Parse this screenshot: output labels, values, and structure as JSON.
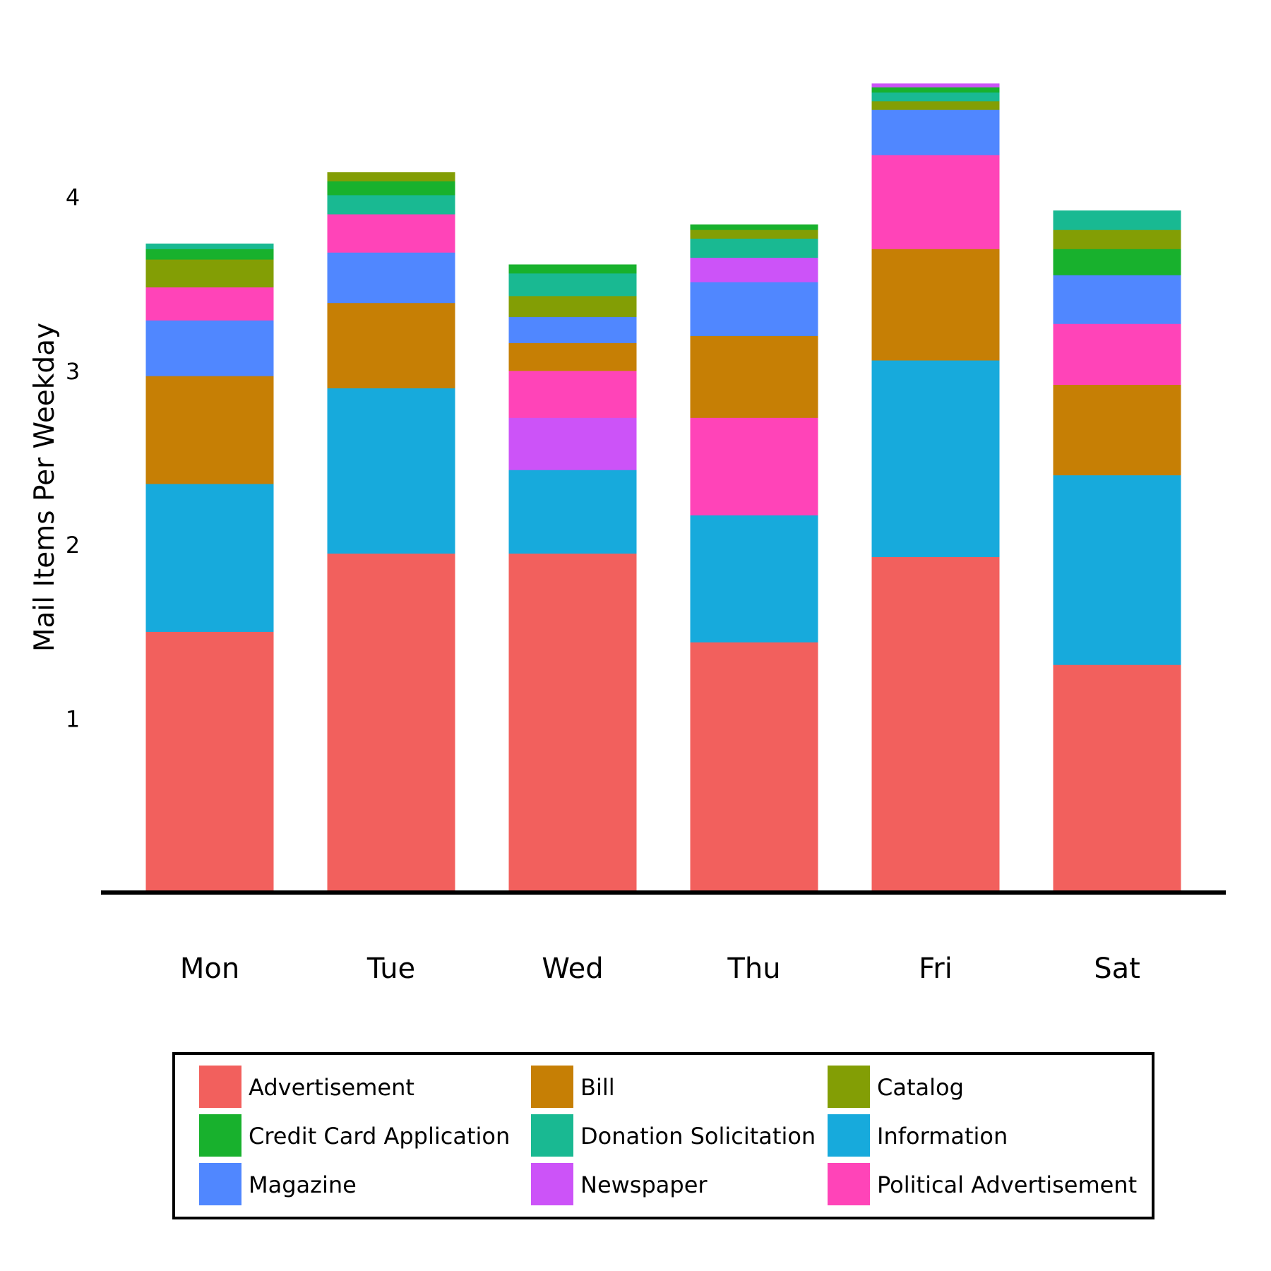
{
  "chart_data": {
    "type": "bar",
    "stacked": true,
    "title": "",
    "xlabel": "",
    "ylabel": "Mail Items Per Weekday",
    "ylim": [
      0,
      4.7
    ],
    "yticks": [
      1,
      2,
      3,
      4
    ],
    "grid": false,
    "legend_placement": "bottom",
    "categories": [
      "Mon",
      "Tue",
      "Wed",
      "Thu",
      "Fri",
      "Sat"
    ],
    "legend": [
      {
        "name": "Advertisement",
        "color": "#F2605D"
      },
      {
        "name": "Bill",
        "color": "#C67F05"
      },
      {
        "name": "Catalog",
        "color": "#839E05"
      },
      {
        "name": "Credit Card Application",
        "color": "#18B12D"
      },
      {
        "name": "Donation Solicitation",
        "color": "#19B992"
      },
      {
        "name": "Information",
        "color": "#17AADC"
      },
      {
        "name": "Magazine",
        "color": "#5087FF"
      },
      {
        "name": "Newspaper",
        "color": "#CC53F8"
      },
      {
        "name": "Political Advertisement",
        "color": "#FF44B8"
      }
    ],
    "stacks": [
      [
        [
          "Advertisement",
          1.5
        ],
        [
          "Information",
          0.85
        ],
        [
          "Bill",
          0.62
        ],
        [
          "Magazine",
          0.32
        ],
        [
          "Political Advertisement",
          0.19
        ],
        [
          "Catalog",
          0.16
        ],
        [
          "Credit Card Application",
          0.06
        ],
        [
          "Donation Solicitation",
          0.03
        ]
      ],
      [
        [
          "Advertisement",
          1.95
        ],
        [
          "Information",
          0.95
        ],
        [
          "Bill",
          0.49
        ],
        [
          "Magazine",
          0.29
        ],
        [
          "Political Advertisement",
          0.22
        ],
        [
          "Donation Solicitation",
          0.11
        ],
        [
          "Credit Card Application",
          0.08
        ],
        [
          "Catalog",
          0.05
        ]
      ],
      [
        [
          "Advertisement",
          1.95
        ],
        [
          "Information",
          0.48
        ],
        [
          "Newspaper",
          0.3
        ],
        [
          "Political Advertisement",
          0.27
        ],
        [
          "Bill",
          0.16
        ],
        [
          "Magazine",
          0.15
        ],
        [
          "Catalog",
          0.12
        ],
        [
          "Donation Solicitation",
          0.13
        ],
        [
          "Credit Card Application",
          0.05
        ]
      ],
      [
        [
          "Advertisement",
          1.44
        ],
        [
          "Information",
          0.73
        ],
        [
          "Political Advertisement",
          0.56
        ],
        [
          "Bill",
          0.47
        ],
        [
          "Magazine",
          0.31
        ],
        [
          "Newspaper",
          0.14
        ],
        [
          "Donation Solicitation",
          0.11
        ],
        [
          "Catalog",
          0.05
        ],
        [
          "Credit Card Application",
          0.03
        ]
      ],
      [
        [
          "Advertisement",
          1.93
        ],
        [
          "Information",
          1.13
        ],
        [
          "Bill",
          0.64
        ],
        [
          "Political Advertisement",
          0.54
        ],
        [
          "Magazine",
          0.26
        ],
        [
          "Catalog",
          0.05
        ],
        [
          "Donation Solicitation",
          0.05
        ],
        [
          "Credit Card Application",
          0.03
        ],
        [
          "Newspaper",
          0.02
        ]
      ],
      [
        [
          "Advertisement",
          1.31
        ],
        [
          "Information",
          1.09
        ],
        [
          "Bill",
          0.52
        ],
        [
          "Political Advertisement",
          0.35
        ],
        [
          "Magazine",
          0.28
        ],
        [
          "Credit Card Application",
          0.15
        ],
        [
          "Catalog",
          0.11
        ],
        [
          "Donation Solicitation",
          0.11
        ]
      ]
    ]
  }
}
